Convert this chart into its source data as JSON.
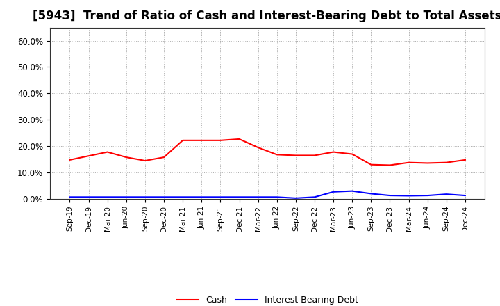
{
  "title": "[5943]  Trend of Ratio of Cash and Interest-Bearing Debt to Total Assets",
  "x_labels": [
    "Sep-19",
    "Dec-19",
    "Mar-20",
    "Jun-20",
    "Sep-20",
    "Dec-20",
    "Mar-21",
    "Jun-21",
    "Sep-21",
    "Dec-21",
    "Mar-22",
    "Jun-22",
    "Sep-22",
    "Dec-22",
    "Mar-23",
    "Jun-23",
    "Sep-23",
    "Dec-23",
    "Mar-24",
    "Jun-24",
    "Sep-24",
    "Dec-24"
  ],
  "cash": [
    0.148,
    0.163,
    0.178,
    0.158,
    0.145,
    0.158,
    0.222,
    0.222,
    0.222,
    0.227,
    0.195,
    0.168,
    0.165,
    0.165,
    0.178,
    0.17,
    0.13,
    0.128,
    0.138,
    0.136,
    0.138,
    0.148
  ],
  "interest_bearing_debt": [
    0.007,
    0.007,
    0.007,
    0.007,
    0.007,
    0.007,
    0.007,
    0.007,
    0.007,
    0.007,
    0.007,
    0.007,
    0.003,
    0.007,
    0.027,
    0.03,
    0.02,
    0.013,
    0.012,
    0.013,
    0.018,
    0.013
  ],
  "cash_color": "#ff0000",
  "debt_color": "#0000ff",
  "background_color": "#ffffff",
  "grid_color": "#aaaaaa",
  "ylim": [
    0.0,
    0.65
  ],
  "yticks": [
    0.0,
    0.1,
    0.2,
    0.3,
    0.4,
    0.5,
    0.6
  ],
  "legend_cash": "Cash",
  "legend_debt": "Interest-Bearing Debt",
  "title_fontsize": 12,
  "tick_fontsize": 7.5,
  "ytick_fontsize": 8.5
}
